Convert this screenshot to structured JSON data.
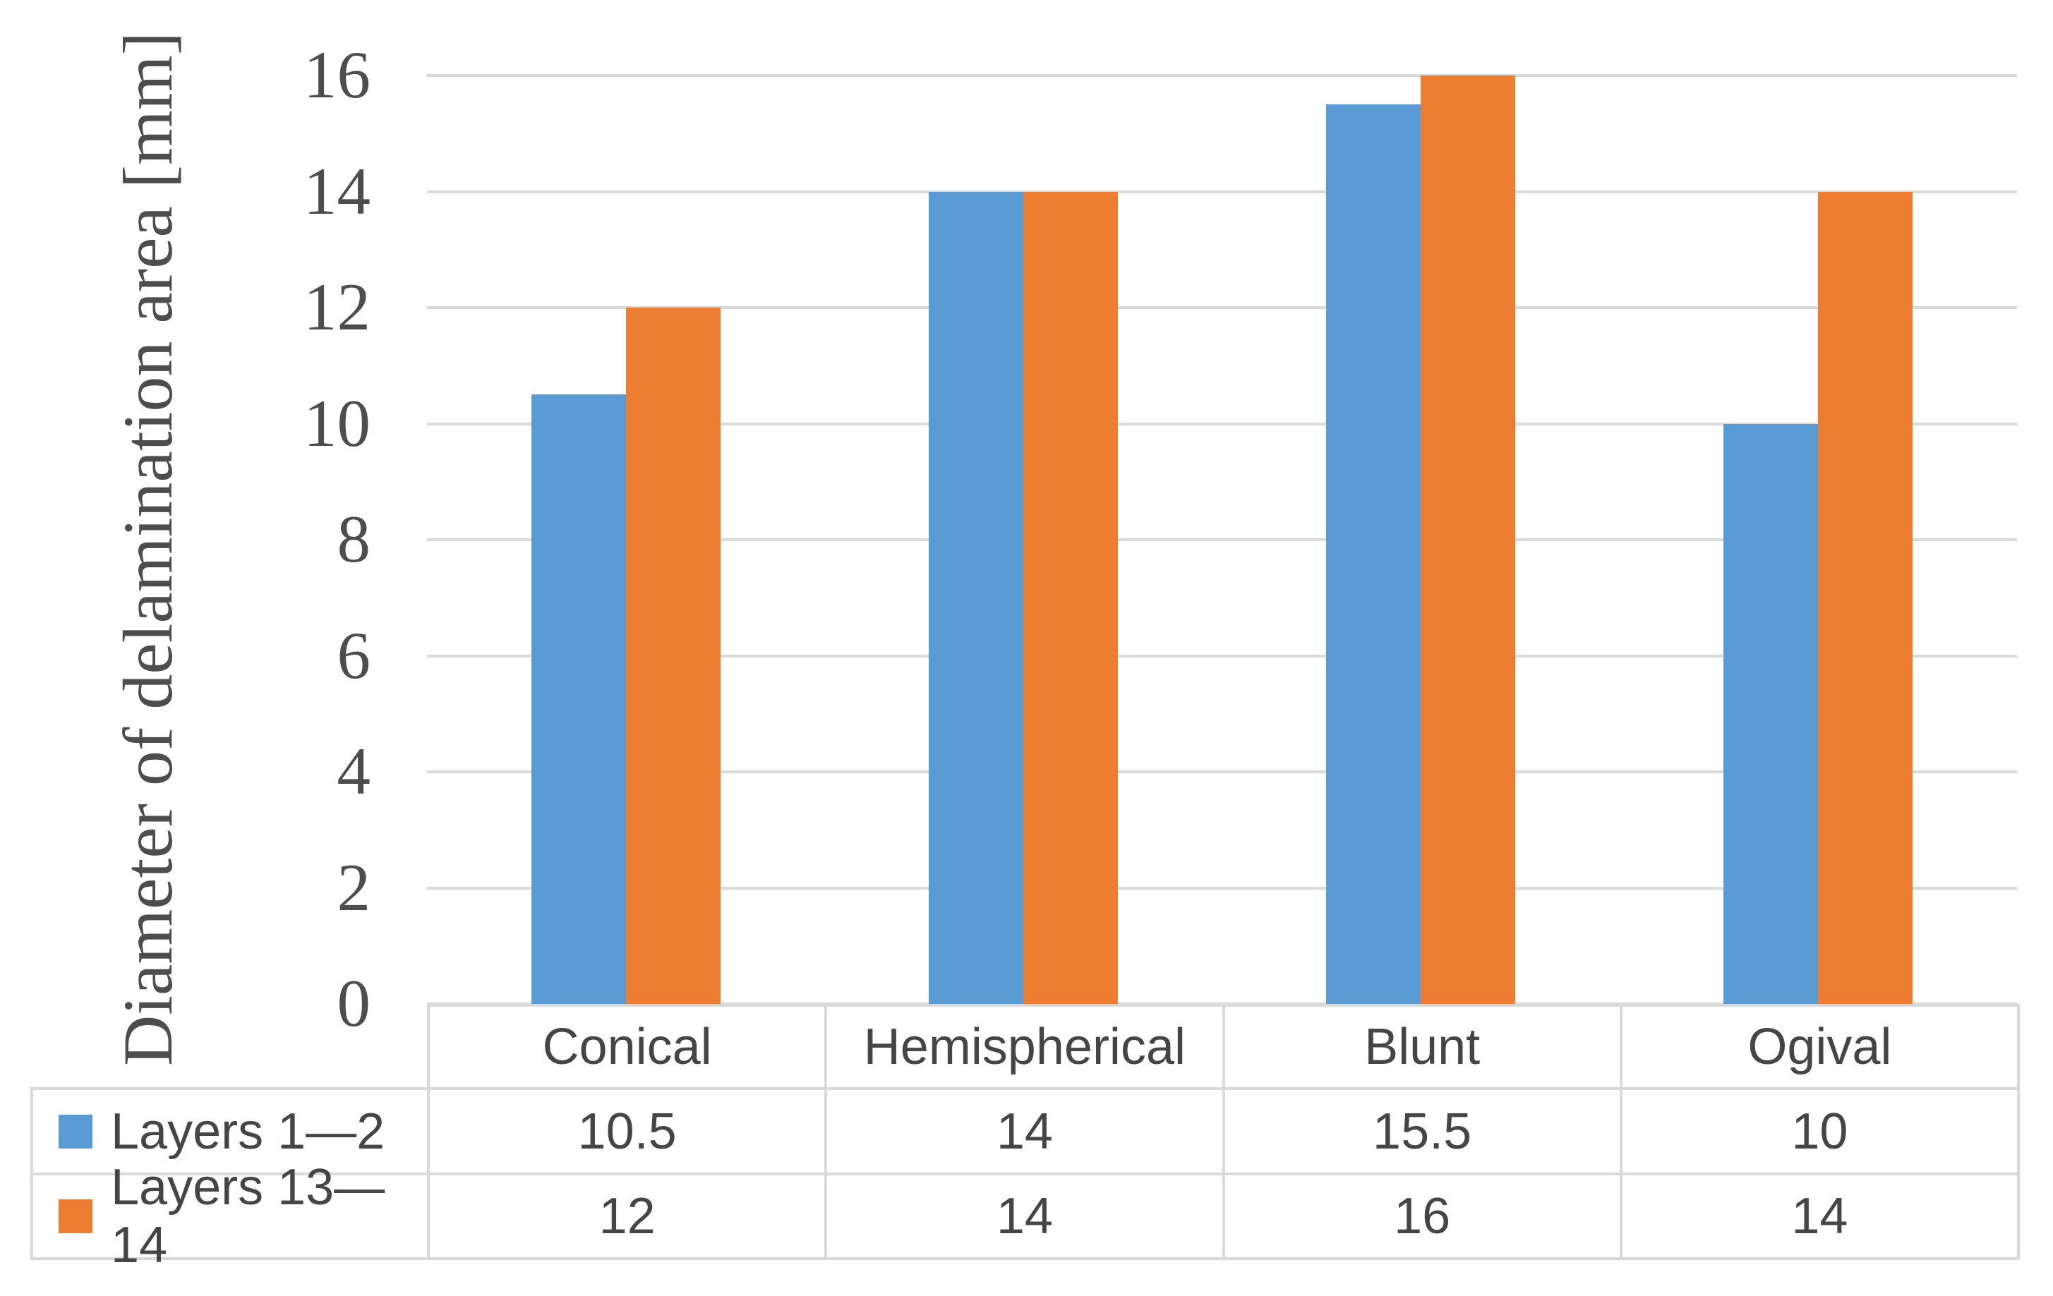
{
  "chart_data": {
    "type": "bar",
    "title": "",
    "ylabel": "Diameter of delamination area [mm]",
    "xlabel": "",
    "categories": [
      "Conical",
      "Hemispherical",
      "Blunt",
      "Ogival"
    ],
    "series": [
      {
        "name": "Layers 1—2",
        "color": "#5B9BD5",
        "values": [
          10.5,
          14,
          15.5,
          10
        ]
      },
      {
        "name": "Layers 13—14",
        "color": "#ED7D31",
        "values": [
          12,
          14,
          16,
          14
        ]
      }
    ],
    "ylim": [
      0,
      16
    ],
    "yticks": [
      0,
      2,
      4,
      6,
      8,
      10,
      12,
      14,
      16
    ],
    "ytick_labels": [
      "0",
      "2",
      "4",
      "6",
      "8",
      "10",
      "12",
      "14",
      "16"
    ],
    "grid": true,
    "legend_position": "data-table-left",
    "data_table_shown": true,
    "colors": {
      "gridline": "#D9D9D9",
      "table_border": "#D9D9D9",
      "axis_text": "#4d4d4d",
      "table_text": "#454545",
      "background": "#ffffff"
    }
  }
}
